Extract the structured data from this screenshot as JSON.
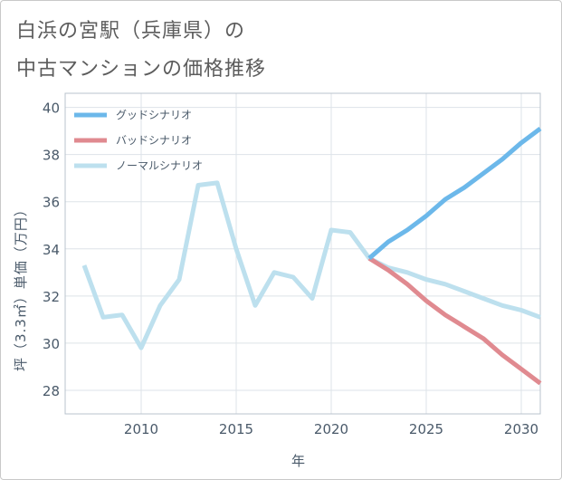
{
  "chart_data": {
    "type": "line",
    "title_line1": "白浜の宮駅（兵庫県）の",
    "title_line2": "中古マンションの価格推移",
    "xlabel": "年",
    "ylabel": "坪（3.3㎡）単価（万円）",
    "xlim": [
      2006,
      2031
    ],
    "ylim": [
      27,
      40.6
    ],
    "x_ticks": [
      2010,
      2015,
      2020,
      2025,
      2030
    ],
    "y_ticks": [
      28,
      30,
      32,
      34,
      36,
      38,
      40
    ],
    "grid": true,
    "legend_position": "top-left",
    "series": [
      {
        "name": "グッドシナリオ",
        "color": "#6cb8ea",
        "x": [
          2022,
          2023,
          2024,
          2025,
          2026,
          2027,
          2028,
          2029,
          2030,
          2031
        ],
        "y": [
          33.6,
          34.3,
          34.8,
          35.4,
          36.1,
          36.6,
          37.2,
          37.8,
          38.5,
          39.1
        ]
      },
      {
        "name": "バッドシナリオ",
        "color": "#e08a90",
        "x": [
          2022,
          2023,
          2024,
          2025,
          2026,
          2027,
          2028,
          2029,
          2030,
          2031
        ],
        "y": [
          33.6,
          33.1,
          32.5,
          31.8,
          31.2,
          30.7,
          30.2,
          29.5,
          28.9,
          28.3
        ]
      },
      {
        "name": "ノーマルシナリオ",
        "color": "#bde0ee",
        "x": [
          2007,
          2008,
          2009,
          2010,
          2011,
          2012,
          2013,
          2014,
          2015,
          2016,
          2017,
          2018,
          2019,
          2020,
          2021,
          2022,
          2023,
          2024,
          2025,
          2026,
          2027,
          2028,
          2029,
          2030,
          2031
        ],
        "y": [
          33.3,
          31.1,
          31.2,
          29.8,
          31.6,
          32.7,
          36.7,
          36.8,
          34.0,
          31.6,
          33.0,
          32.8,
          31.9,
          34.8,
          34.7,
          33.6,
          33.2,
          33.0,
          32.7,
          32.5,
          32.2,
          31.9,
          31.6,
          31.4,
          31.1
        ]
      }
    ]
  }
}
